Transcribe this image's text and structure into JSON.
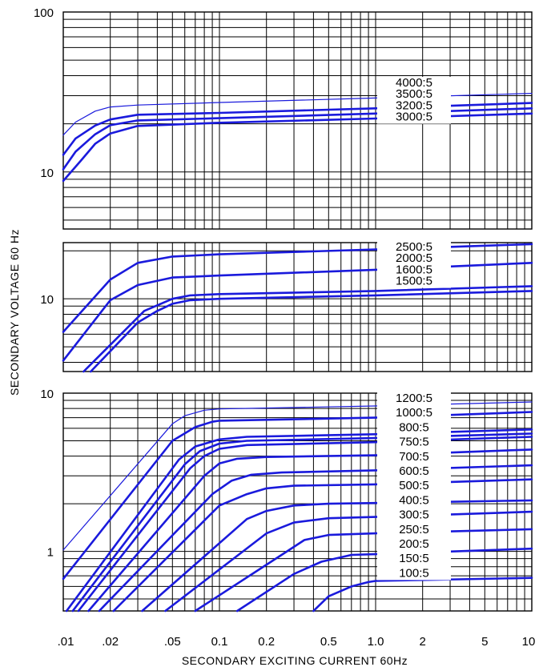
{
  "chart_data": {
    "type": "line",
    "xlabel": "SECONDARY EXCITING CURRENT 60Hz",
    "ylabel": "SECONDARY VOLTAGE 60 Hz",
    "xscale": "log",
    "yscale": "log",
    "xlim": [
      0.01,
      10
    ],
    "x_ticks": [
      ".01",
      ".02",
      ".05",
      "0.1",
      "0.2",
      "0.5",
      "1.0",
      "2",
      "5",
      "10"
    ],
    "grid": true,
    "panels": [
      {
        "ylim": [
          4.4,
          100
        ],
        "y_ticks": [
          {
            "value": 100,
            "label": "100"
          },
          {
            "value": 10,
            "label": "10"
          }
        ],
        "series": [
          {
            "name": "4000:5",
            "weight": "thin",
            "points": [
              [
                0.01,
                17
              ],
              [
                0.012,
                20.5
              ],
              [
                0.016,
                24
              ],
              [
                0.02,
                25.5
              ],
              [
                0.03,
                26.2
              ],
              [
                0.1,
                27.2
              ],
              [
                1,
                29
              ],
              [
                10,
                31
              ]
            ]
          },
          {
            "name": "3500:5",
            "weight": "bold",
            "points": [
              [
                0.01,
                12.8
              ],
              [
                0.012,
                16.2
              ],
              [
                0.016,
                19.5
              ],
              [
                0.02,
                21.3
              ],
              [
                0.03,
                22.8
              ],
              [
                0.1,
                23.4
              ],
              [
                1,
                25
              ],
              [
                10,
                27
              ]
            ]
          },
          {
            "name": "3200:5",
            "weight": "bold",
            "points": [
              [
                0.01,
                10.4
              ],
              [
                0.012,
                13.4
              ],
              [
                0.016,
                17.2
              ],
              [
                0.02,
                19.6
              ],
              [
                0.03,
                21
              ],
              [
                0.1,
                21.7
              ],
              [
                1,
                23.2
              ],
              [
                10,
                25
              ]
            ]
          },
          {
            "name": "3000:5",
            "weight": "bold",
            "points": [
              [
                0.01,
                8.8
              ],
              [
                0.013,
                11.8
              ],
              [
                0.016,
                15
              ],
              [
                0.02,
                17.4
              ],
              [
                0.03,
                19.4
              ],
              [
                0.1,
                20.3
              ],
              [
                1,
                21.6
              ],
              [
                10,
                23.2
              ]
            ]
          }
        ]
      },
      {
        "ylim": [
          3.5,
          22.5
        ],
        "y_ticks": [
          {
            "value": 10,
            "label": "10"
          }
        ],
        "series": [
          {
            "name": "2500:5",
            "weight": "bold",
            "points": [
              [
                0.01,
                6.2
              ],
              [
                0.02,
                13.2
              ],
              [
                0.03,
                16.8
              ],
              [
                0.05,
                18.4
              ],
              [
                0.1,
                19
              ],
              [
                1,
                20.4
              ],
              [
                10,
                22
              ]
            ]
          },
          {
            "name": "2000:5",
            "weight": "bold",
            "points": [
              [
                0.01,
                4.1
              ],
              [
                0.02,
                9.8
              ],
              [
                0.03,
                12.2
              ],
              [
                0.05,
                13.6
              ],
              [
                0.1,
                14
              ],
              [
                1,
                15.2
              ],
              [
                10,
                16.8
              ]
            ]
          },
          {
            "name": "1600:5",
            "weight": "bold",
            "points": [
              [
                0.0135,
                3.5
              ],
              [
                0.025,
                6.4
              ],
              [
                0.033,
                8.4
              ],
              [
                0.05,
                10
              ],
              [
                0.065,
                10.5
              ],
              [
                0.1,
                10.7
              ],
              [
                1,
                11.2
              ],
              [
                10,
                12
              ]
            ]
          },
          {
            "name": "1500:5",
            "weight": "bold",
            "points": [
              [
                0.015,
                3.5
              ],
              [
                0.03,
                7.1
              ],
              [
                0.04,
                8.4
              ],
              [
                0.05,
                9.3
              ],
              [
                0.065,
                9.8
              ],
              [
                0.1,
                10
              ],
              [
                1,
                10.5
              ],
              [
                10,
                11.2
              ]
            ]
          }
        ]
      },
      {
        "ylim": [
          0.42,
          10
        ],
        "y_ticks": [
          {
            "value": 10,
            "label": "10"
          },
          {
            "value": 1,
            "label": "1"
          }
        ],
        "series": [
          {
            "name": "1200:5",
            "weight": "thin",
            "points": [
              [
                0.01,
                1.02
              ],
              [
                0.05,
                6.4
              ],
              [
                0.06,
                7.2
              ],
              [
                0.08,
                7.8
              ],
              [
                0.1,
                7.95
              ],
              [
                1,
                8.3
              ],
              [
                10,
                8.8
              ]
            ]
          },
          {
            "name": "1000:5",
            "weight": "bold",
            "points": [
              [
                0.01,
                0.67
              ],
              [
                0.05,
                5
              ],
              [
                0.07,
                6.1
              ],
              [
                0.09,
                6.6
              ],
              [
                0.1,
                6.7
              ],
              [
                1,
                7
              ],
              [
                10,
                7.6
              ]
            ]
          },
          {
            "name": "800:5",
            "weight": "bold",
            "points": [
              [
                0.0105,
                0.42
              ],
              [
                0.055,
                3.8
              ],
              [
                0.07,
                4.6
              ],
              [
                0.1,
                5.1
              ],
              [
                0.15,
                5.3
              ],
              [
                1,
                5.5
              ],
              [
                10,
                5.9
              ]
            ]
          },
          {
            "name": "750:5",
            "weight": "bold",
            "points": [
              [
                0.0115,
                0.42
              ],
              [
                0.06,
                3.55
              ],
              [
                0.075,
                4.3
              ],
              [
                0.1,
                4.8
              ],
              [
                0.15,
                5
              ],
              [
                1,
                5.2
              ],
              [
                10,
                5.55
              ]
            ]
          },
          {
            "name": "700:5",
            "weight": "bold",
            "points": [
              [
                0.0125,
                0.42
              ],
              [
                0.065,
                3.35
              ],
              [
                0.08,
                4
              ],
              [
                0.1,
                4.45
              ],
              [
                0.15,
                4.7
              ],
              [
                1,
                4.9
              ],
              [
                10,
                5.3
              ]
            ]
          },
          {
            "name": "600:5",
            "weight": "bold",
            "points": [
              [
                0.0145,
                0.42
              ],
              [
                0.08,
                3
              ],
              [
                0.1,
                3.6
              ],
              [
                0.13,
                3.85
              ],
              [
                0.2,
                3.95
              ],
              [
                1,
                4.05
              ],
              [
                10,
                4.4
              ]
            ]
          },
          {
            "name": "500:5",
            "weight": "bold",
            "points": [
              [
                0.017,
                0.42
              ],
              [
                0.09,
                2.3
              ],
              [
                0.12,
                2.8
              ],
              [
                0.16,
                3.05
              ],
              [
                0.25,
                3.15
              ],
              [
                1,
                3.25
              ],
              [
                10,
                3.5
              ]
            ]
          },
          {
            "name": "400:5",
            "weight": "bold",
            "points": [
              [
                0.021,
                0.42
              ],
              [
                0.1,
                1.95
              ],
              [
                0.15,
                2.3
              ],
              [
                0.2,
                2.5
              ],
              [
                0.3,
                2.6
              ],
              [
                1,
                2.65
              ],
              [
                10,
                2.85
              ]
            ]
          },
          {
            "name": "300:5",
            "weight": "bold",
            "points": [
              [
                0.032,
                0.42
              ],
              [
                0.15,
                1.6
              ],
              [
                0.2,
                1.8
              ],
              [
                0.3,
                1.95
              ],
              [
                0.5,
                2
              ],
              [
                1,
                2.02
              ],
              [
                10,
                2.1
              ]
            ]
          },
          {
            "name": "250:5",
            "weight": "bold",
            "points": [
              [
                0.045,
                0.42
              ],
              [
                0.2,
                1.3
              ],
              [
                0.3,
                1.52
              ],
              [
                0.5,
                1.62
              ],
              [
                1,
                1.65
              ],
              [
                10,
                1.78
              ]
            ]
          },
          {
            "name": "200:5",
            "weight": "bold",
            "points": [
              [
                0.07,
                0.42
              ],
              [
                0.25,
                0.95
              ],
              [
                0.35,
                1.18
              ],
              [
                0.5,
                1.27
              ],
              [
                1,
                1.3
              ],
              [
                10,
                1.38
              ]
            ]
          },
          {
            "name": "150:5",
            "weight": "bold",
            "points": [
              [
                0.13,
                0.42
              ],
              [
                0.3,
                0.72
              ],
              [
                0.45,
                0.86
              ],
              [
                0.7,
                0.95
              ],
              [
                1,
                0.96
              ],
              [
                10,
                1.04
              ]
            ]
          },
          {
            "name": "100:5",
            "weight": "bold",
            "points": [
              [
                0.4,
                0.42
              ],
              [
                0.5,
                0.52
              ],
              [
                0.7,
                0.6
              ],
              [
                0.9,
                0.64
              ],
              [
                1,
                0.65
              ],
              [
                10,
                0.68
              ]
            ]
          }
        ]
      }
    ]
  },
  "colors": {
    "curve": "#1a1adc",
    "grid": "#000000",
    "text": "#000000"
  }
}
